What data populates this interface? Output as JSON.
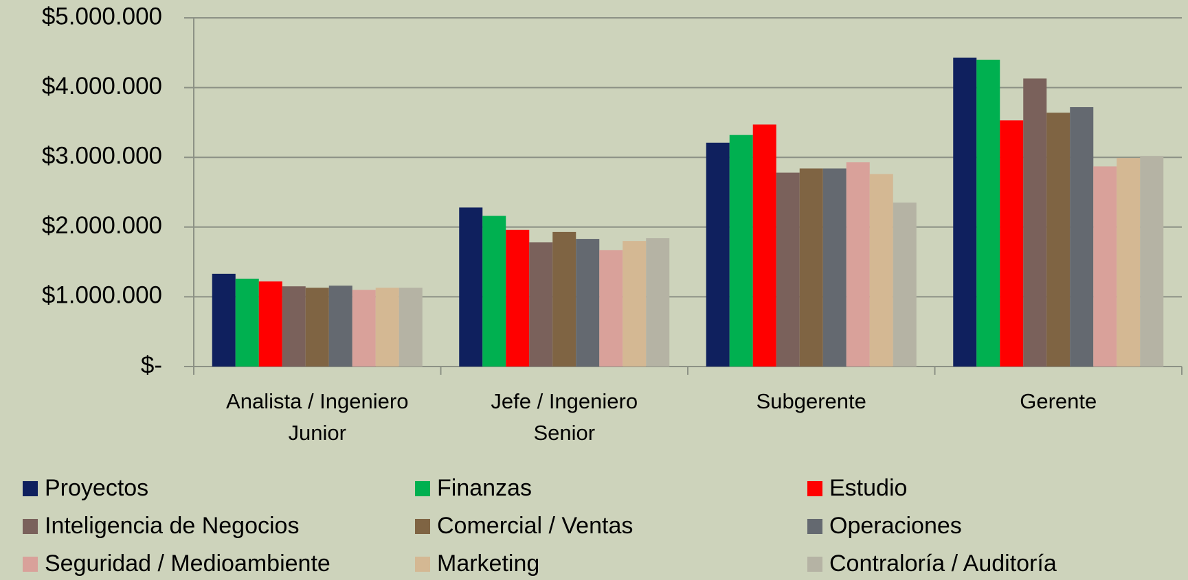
{
  "chart_data": {
    "type": "bar",
    "categories": [
      "Analista / Ingeniero Junior",
      "Jefe / Ingeniero Senior",
      "Subgerente",
      "Gerente"
    ],
    "series": [
      {
        "name": "Proyectos",
        "color": "#0f205e",
        "values": [
          1330000,
          2280000,
          3210000,
          4430000
        ]
      },
      {
        "name": "Finanzas",
        "color": "#00b050",
        "values": [
          1260000,
          2160000,
          3320000,
          4400000
        ]
      },
      {
        "name": "Estudio",
        "color": "#ff0000",
        "values": [
          1220000,
          1960000,
          3470000,
          3530000
        ]
      },
      {
        "name": "Inteligencia de Negocios",
        "color": "#7a615b",
        "values": [
          1150000,
          1780000,
          2780000,
          4130000
        ]
      },
      {
        "name": "Comercial / Ventas",
        "color": "#7f6443",
        "values": [
          1130000,
          1930000,
          2840000,
          3640000
        ]
      },
      {
        "name": "Operaciones",
        "color": "#646970",
        "values": [
          1160000,
          1830000,
          2840000,
          3720000
        ]
      },
      {
        "name": "Seguridad / Medioambiente",
        "color": "#d9a19a",
        "values": [
          1100000,
          1670000,
          2930000,
          2870000
        ]
      },
      {
        "name": "Marketing",
        "color": "#d4b893",
        "values": [
          1130000,
          1800000,
          2760000,
          2990000
        ]
      },
      {
        "name": "Contraloría / Auditoría",
        "color": "#b5b3a4",
        "values": [
          1130000,
          1840000,
          2350000,
          3020000
        ]
      }
    ],
    "ylim": [
      0,
      5000000
    ],
    "yticks": [
      {
        "value": 0,
        "label": "$-"
      },
      {
        "value": 1000000,
        "label": "$1.000.000"
      },
      {
        "value": 2000000,
        "label": "$2.000.000"
      },
      {
        "value": 3000000,
        "label": "$3.000.000"
      },
      {
        "value": 4000000,
        "label": "$4.000.000"
      },
      {
        "value": 5000000,
        "label": "$5.000.000"
      }
    ],
    "grid": true,
    "legend": "bottom"
  }
}
